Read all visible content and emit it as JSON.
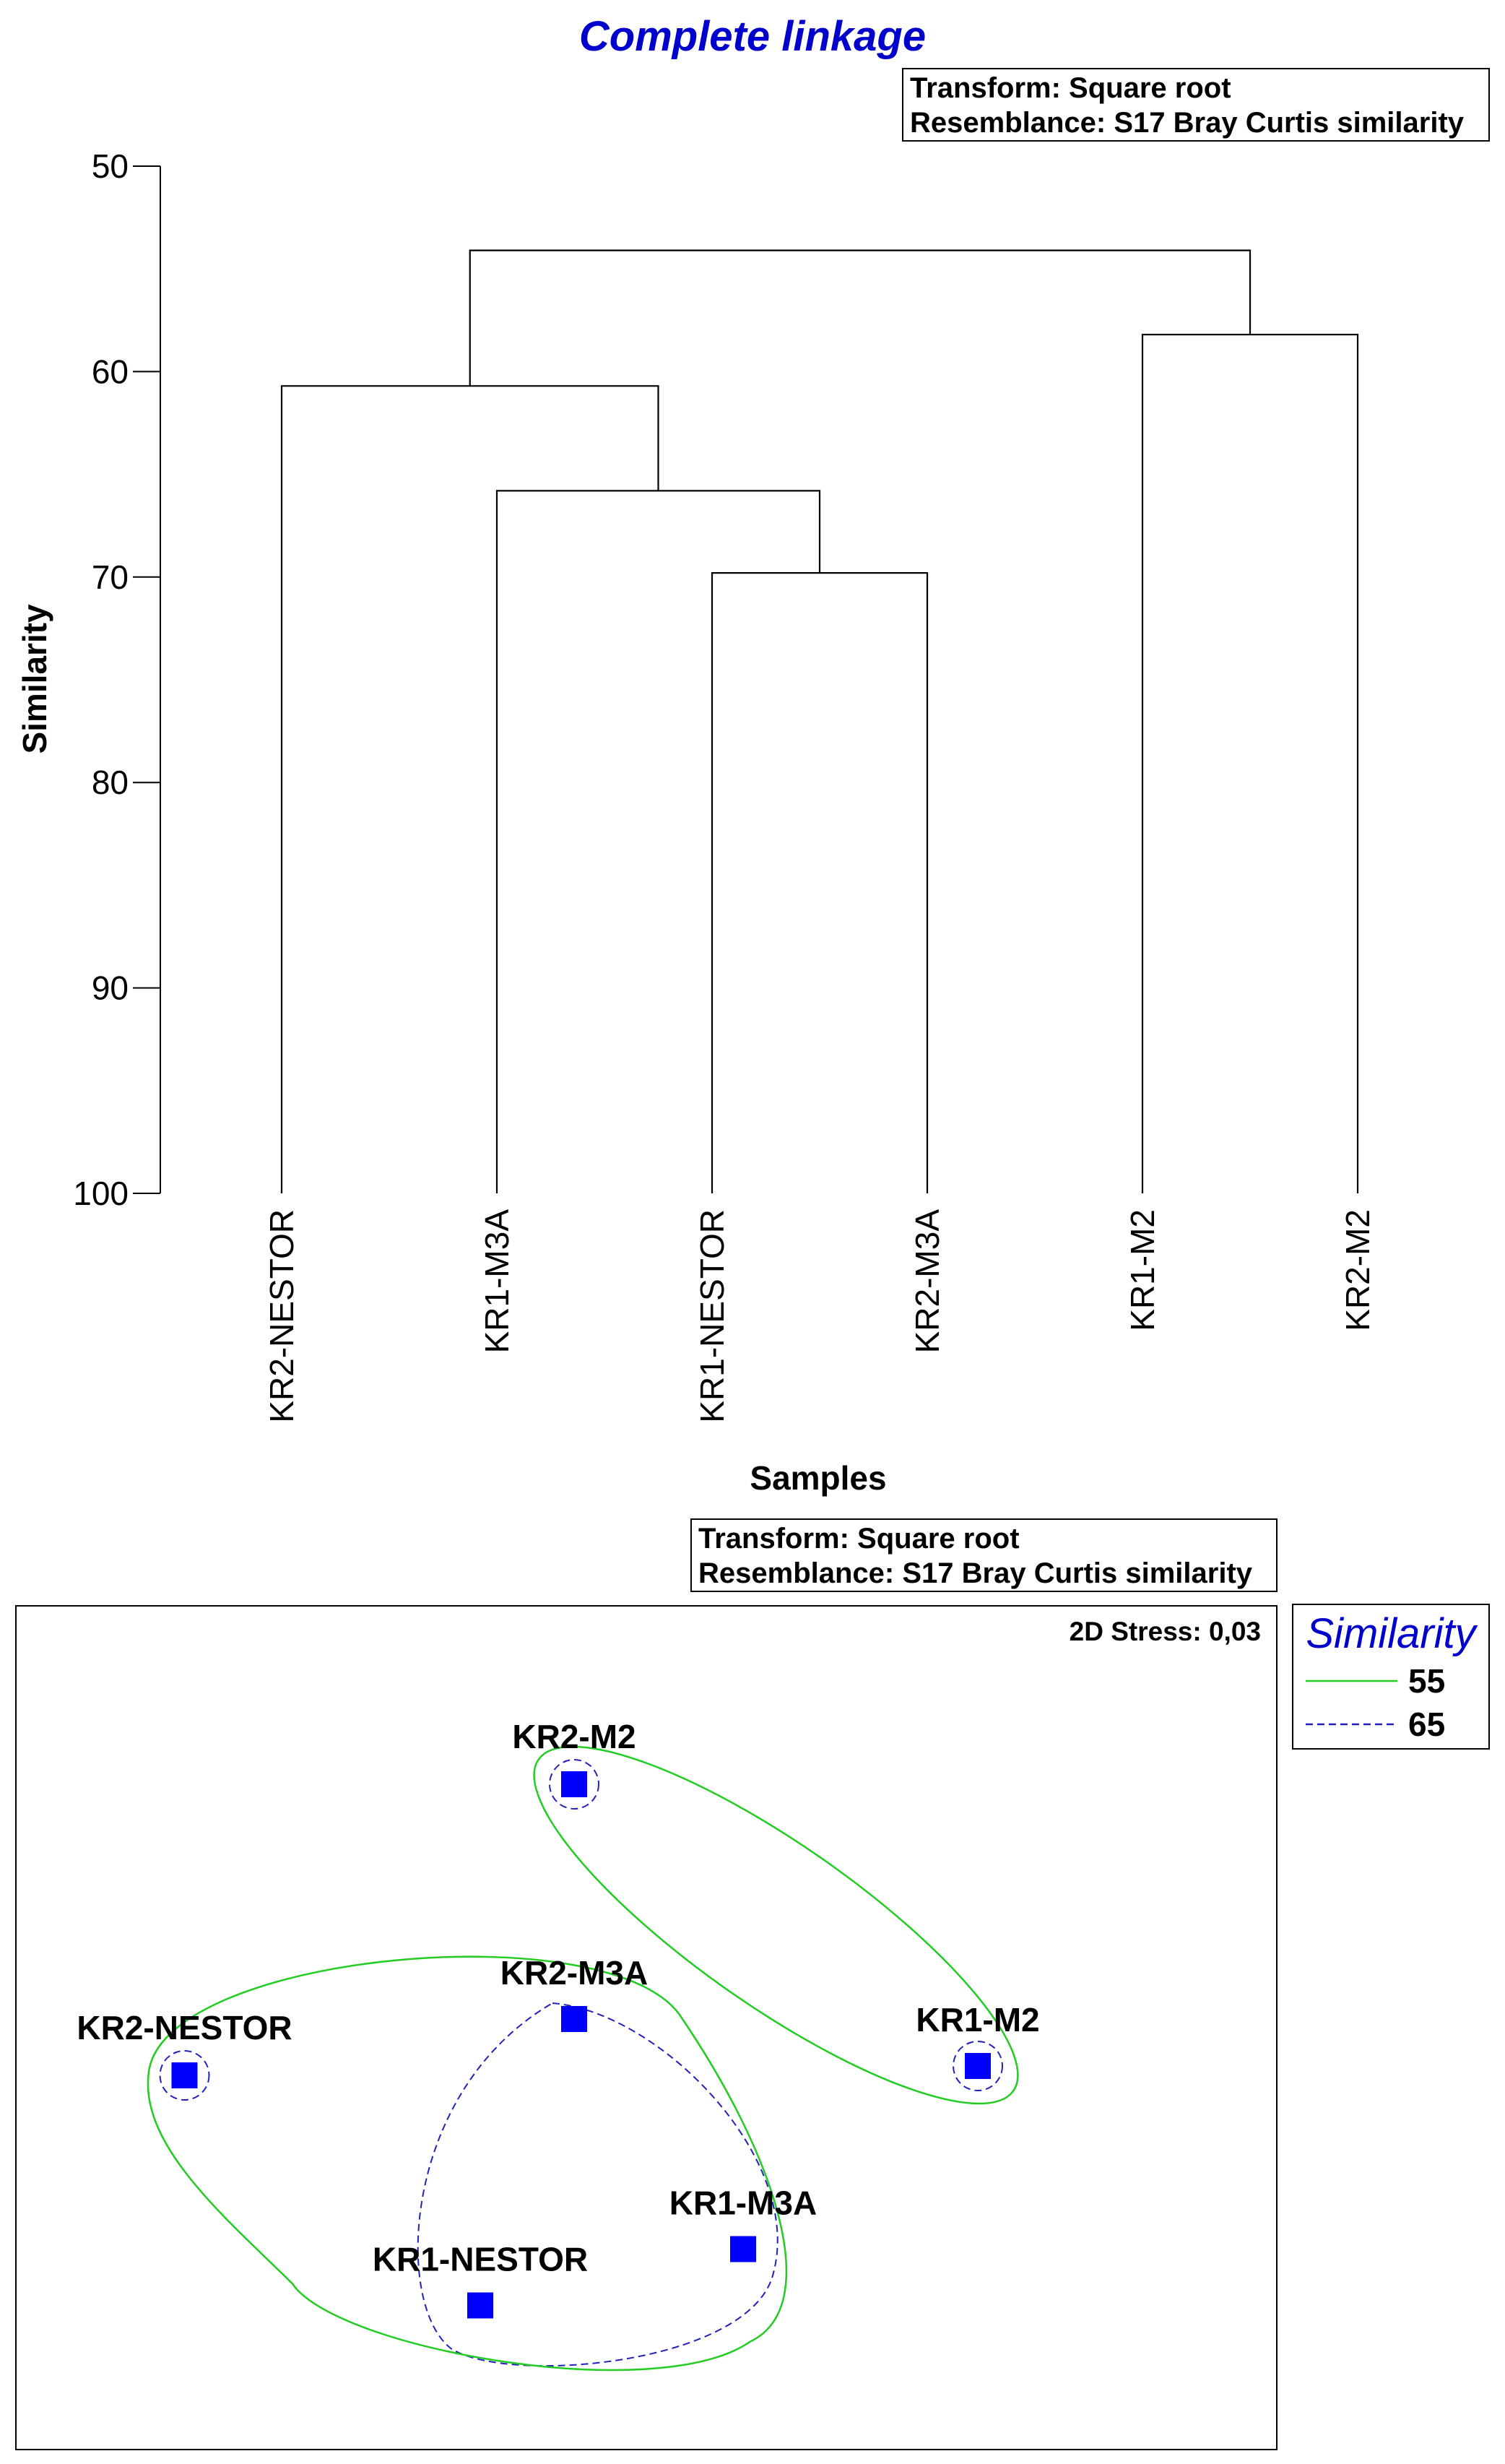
{
  "chart_data": [
    {
      "type": "dendrogram",
      "title": "Complete linkage",
      "info": [
        "Transform: Square root",
        "Resemblance: S17 Bray Curtis similarity"
      ],
      "xlabel": "Samples",
      "ylabel": "Similarity",
      "ylim": [
        50,
        100
      ],
      "yticks": [
        50,
        60,
        70,
        80,
        90,
        100
      ],
      "leaves": [
        "KR2-NESTOR",
        "KR1-M3A",
        "KR1-NESTOR",
        "KR2-M3A",
        "KR1-M2",
        "KR2-M2"
      ],
      "merges": [
        {
          "left": 3,
          "right": 4,
          "similarity": 69.8
        },
        {
          "left": 2,
          "right": 7,
          "similarity": 65.8
        },
        {
          "left": 1,
          "right": 8,
          "similarity": 60.7
        },
        {
          "left": 5,
          "right": 6,
          "similarity": 58.2
        },
        {
          "left": 9,
          "right": 10,
          "similarity": 54.1
        }
      ]
    },
    {
      "type": "scatter",
      "info": [
        "Transform: Square root",
        "Resemblance: S17 Bray Curtis similarity"
      ],
      "stress": "2D Stress: 0,03",
      "points": [
        {
          "label": "KR2-M2",
          "x": 0.3,
          "y": 0.94
        },
        {
          "label": "KR2-M3A",
          "x": 0.3,
          "y": 0.44
        },
        {
          "label": "KR2-NESTOR",
          "x": -0.53,
          "y": 0.32
        },
        {
          "label": "KR1-M2",
          "x": 1.16,
          "y": 0.34
        },
        {
          "label": "KR1-M3A",
          "x": 0.66,
          "y": -0.05
        },
        {
          "label": "KR1-NESTOR",
          "x": 0.1,
          "y": -0.17
        }
      ],
      "legend": {
        "title": "Similarity",
        "position": "right",
        "items": [
          {
            "label": "55",
            "color": "#22cc22",
            "style": "solid"
          },
          {
            "label": "65",
            "color": "#2222bb",
            "style": "dashed"
          }
        ]
      },
      "colors": {
        "points": "#0000ff",
        "title": "#0000cc",
        "legend_title": "#0000cc"
      }
    }
  ]
}
